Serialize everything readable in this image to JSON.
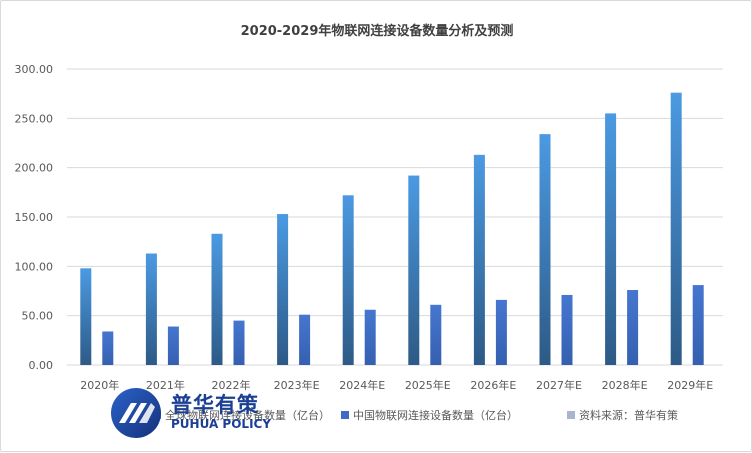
{
  "chart_data": {
    "type": "bar",
    "title": "2020-2029年物联网连接设备数量分析及预测",
    "categories": [
      "2020年",
      "2021年",
      "2022年",
      "2023年E",
      "2024年E",
      "2025年E",
      "2026年E",
      "2027年E",
      "2028年E",
      "2029年E"
    ],
    "series": [
      {
        "name": "全球物联网连接设备数量（亿台）",
        "values": [
          98,
          113,
          133,
          153,
          172,
          192,
          213,
          234,
          255,
          276
        ],
        "color": "#4a90d9"
      },
      {
        "name": "中国物联网连接设备数量（亿台）",
        "values": [
          34,
          39,
          45,
          51,
          56,
          61,
          66,
          71,
          76,
          81
        ],
        "color": "#3f6bc6"
      },
      {
        "name": "资料来源：普华有策",
        "values": [
          0,
          0,
          0,
          0,
          0,
          0,
          0,
          0,
          0,
          0
        ],
        "color": "#a9b4cf"
      }
    ],
    "ylim": [
      0,
      300
    ],
    "yticks": [
      "0.00",
      "50.00",
      "100.00",
      "150.00",
      "200.00",
      "250.00",
      "300.00"
    ],
    "grid": true,
    "legend": "bottom"
  },
  "logo": {
    "name_cn": "普华有策",
    "name_en": "PUHUA POLICY"
  }
}
